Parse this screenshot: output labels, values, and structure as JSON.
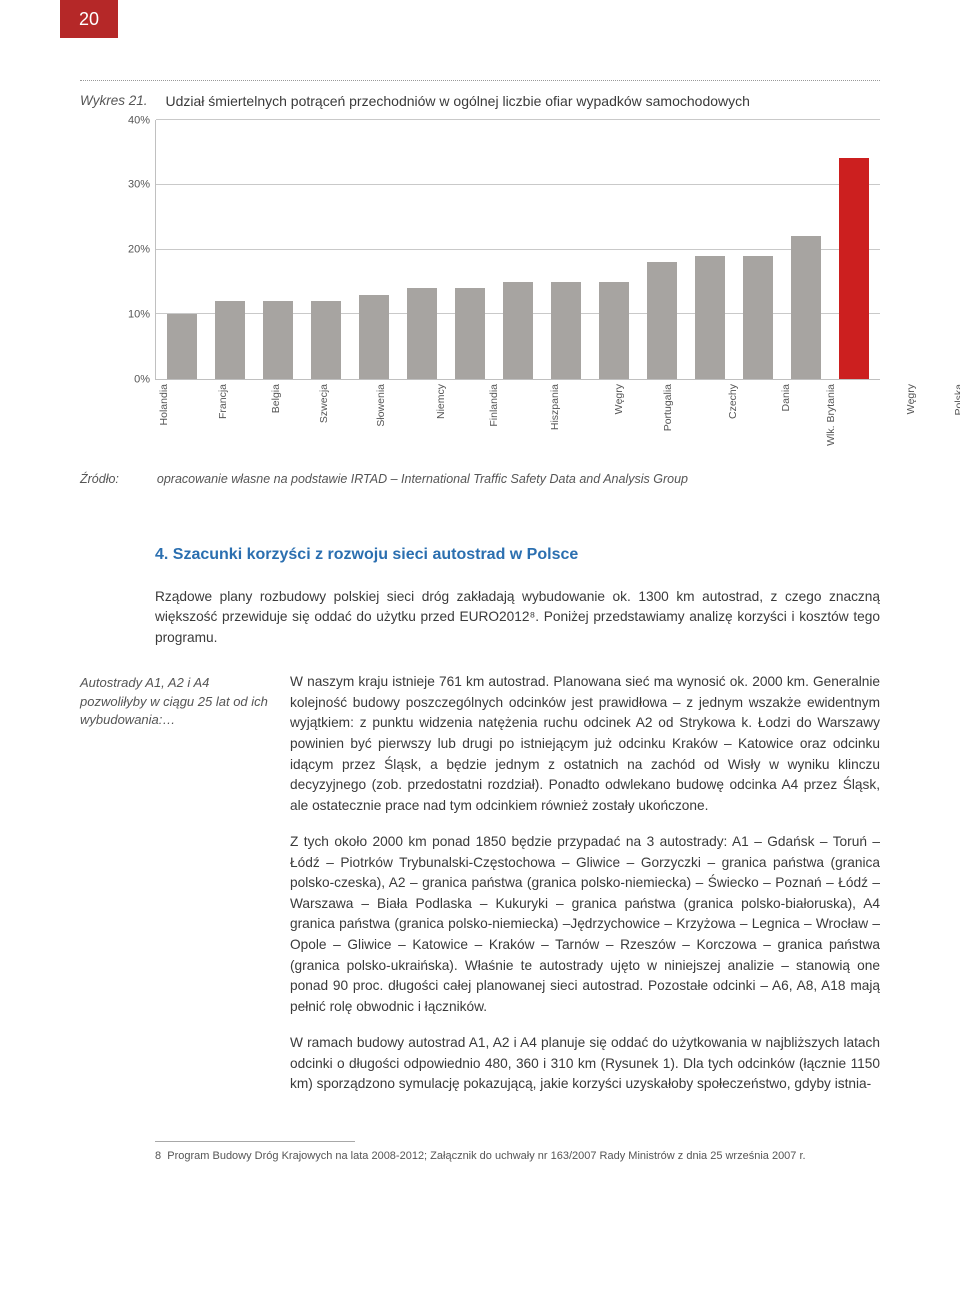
{
  "page_number": "20",
  "chart": {
    "label": "Wykres 21.",
    "title": "Udział śmiertelnych potrąceń przechodniów w ogólnej liczbie ofiar wypadków samochodowych",
    "type": "bar",
    "y_ticks": [
      "0%",
      "10%",
      "20%",
      "30%",
      "40%"
    ],
    "y_max": 40,
    "grid_color": "#c9c9c9",
    "background_color": "#ffffff",
    "bar_color_default": "#a7a4a1",
    "bar_color_highlight": "#cc1f1f",
    "categories": [
      "Holandia",
      "Francja",
      "Belgia",
      "Szwecja",
      "Słowenia",
      "Niemcy",
      "Finlandia",
      "Hiszpania",
      "Węgry",
      "Portugalia",
      "Czechy",
      "Dania",
      "Wlk. Brytania",
      "Węgry",
      "Polska"
    ],
    "values": [
      10,
      12,
      12,
      12,
      13,
      14,
      14,
      15,
      15,
      15,
      18,
      19,
      19,
      22,
      34
    ],
    "highlight_index": 14
  },
  "source": {
    "label": "Źródło:",
    "text": "opracowanie własne na podstawie IRTAD – International Traffic Safety Data and Analysis Group"
  },
  "section": {
    "heading": "4.   Szacunki korzyści z rozwoju sieci autostrad w Polsce",
    "intro": "Rządowe plany rozbudowy polskiej sieci dróg zakładają wybudowanie ok. 1300 km autostrad, z czego znaczną większość przewiduje się oddać do użytku przed EURO2012⁸. Poniżej przedstawiamy analizę korzyści i kosztów tego programu.",
    "margin_note": "Autostrady A1, A2 i A4 pozwoliłyby w ciągu 25 lat od ich wybudowania:…",
    "p2": "W naszym kraju istnieje 761 km autostrad. Planowana sieć ma wynosić ok. 2000 km. Generalnie kolejność budowy poszczególnych odcinków jest prawidłowa – z jednym wszakże ewidentnym wyjątkiem: z punktu widzenia natężenia ruchu odcinek A2 od Strykowa k. Łodzi do Warszawy powinien być pierwszy lub drugi po istniejącym już odcinku Kraków – Katowice oraz odcinku idącym przez Śląsk, a będzie jednym z ostatnich na zachód od Wisły w wyniku klinczu decyzyjnego (zob. przedostatni rozdział). Ponadto odwlekano budowę odcinka A4 przez Śląsk, ale ostatecznie prace nad tym odcinkiem również zostały ukończone.",
    "p3": "Z tych około 2000 km ponad 1850 będzie przypadać na 3 autostrady: A1 – Gdańsk – Toruń – Łódź – Piotrków Trybunalski-Częstochowa – Gliwice – Gorzyczki – granica państwa (granica polsko-czeska), A2 – granica państwa (granica polsko-niemiecka) – Świecko – Poznań – Łódź – Warszawa –  Biała Podlaska – Kukuryki – granica państwa (granica polsko-białoruska), A4 granica państwa (granica polsko-niemiecka) –Jędrzychowice – Krzyżowa – Legnica – Wrocław – Opole – Gliwice – Katowice – Kraków – Tarnów – Rzeszów – Korczowa – granica państwa (granica polsko-ukraińska). Właśnie te autostrady ujęto w niniejszej analizie – stanowią one ponad 90 proc. długości całej planowanej sieci autostrad. Pozostałe odcinki – A6, A8, A18 mają pełnić rolę obwodnic i łączników.",
    "p4": "W ramach budowy autostrad A1, A2 i A4 planuje się oddać do użytkowania w najbliższych latach odcinki o długości odpowiednio 480, 360 i 310 km (Rysunek 1). Dla tych odcinków (łącznie 1150 km) sporządzono symulację pokazującą, jakie korzyści uzyskałoby społeczeństwo, gdyby istnia-"
  },
  "footnote": {
    "marker": "8",
    "text": "Program Budowy Dróg Krajowych na lata 2008-2012; Załącznik do uchwały nr 163/2007 Rady Ministrów z dnia 25 września 2007 r."
  }
}
